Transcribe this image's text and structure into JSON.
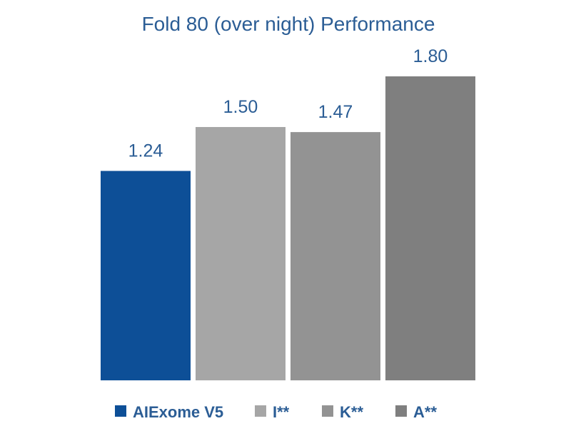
{
  "chart_data": {
    "type": "bar",
    "title": "Fold 80 (over night)  Performance",
    "xlabel": "",
    "ylabel": "",
    "ylim": [
      0,
      1.8
    ],
    "grid": false,
    "legend_position": "bottom",
    "categories": [
      "AIExome V5",
      "I**",
      "K**",
      "A**"
    ],
    "values": [
      1.24,
      1.5,
      1.47,
      1.8
    ],
    "value_labels": [
      "1.24",
      "1.50",
      "1.47",
      "1.80"
    ],
    "colors": [
      "#0d4f97",
      "#a6a6a6",
      "#939393",
      "#7f7f7f"
    ]
  }
}
